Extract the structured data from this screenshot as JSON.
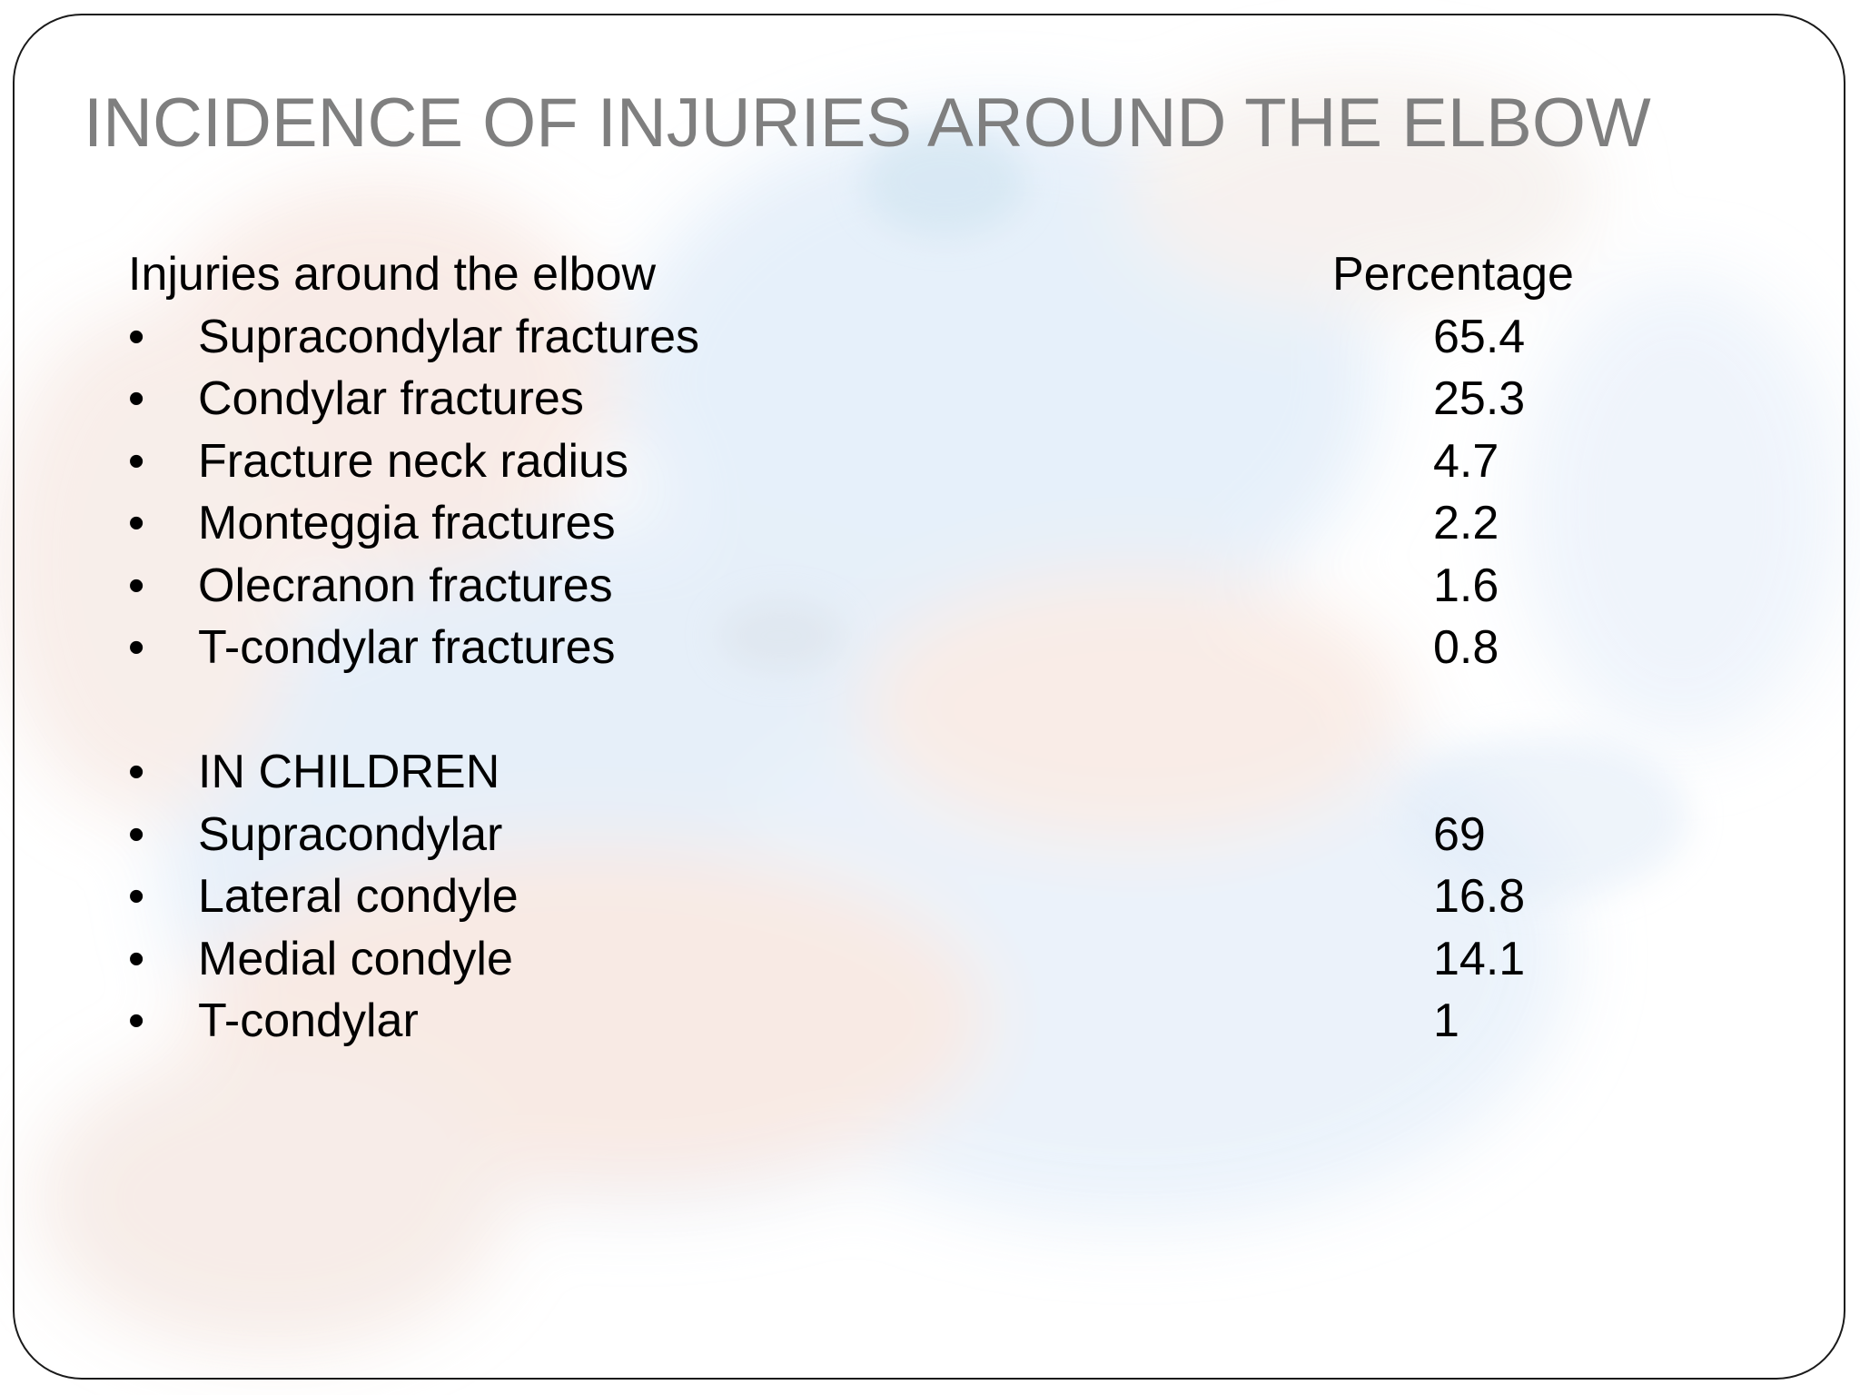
{
  "slide": {
    "title": "INCIDENCE OF INJURIES AROUND THE ELBOW",
    "bullet_glyph": "•",
    "table_header": {
      "label": "Injuries around the elbow",
      "value": "Percentage"
    },
    "adult_rows": [
      {
        "label": "Supracondylar fractures",
        "value": "65.4"
      },
      {
        "label": "Condylar fractures",
        "value": "25.3"
      },
      {
        "label": "Fracture neck radius",
        "value": "4.7"
      },
      {
        "label": "Monteggia fractures",
        "value": "2.2"
      },
      {
        "label": "Olecranon fractures",
        "value": "1.6"
      },
      {
        "label": "T-condylar fractures",
        "value": "0.8"
      }
    ],
    "children_heading": "IN CHILDREN",
    "children_rows": [
      {
        "label": "Supracondylar",
        "value": "69"
      },
      {
        "label": "Lateral condyle",
        "value": "16.8"
      },
      {
        "label": "Medial condyle",
        "value": "14.1"
      },
      {
        "label": "T-condylar",
        "value": "1"
      }
    ]
  },
  "colors": {
    "title": "#7f7f7f",
    "text": "#000000",
    "frame": "#1a1a1a"
  }
}
